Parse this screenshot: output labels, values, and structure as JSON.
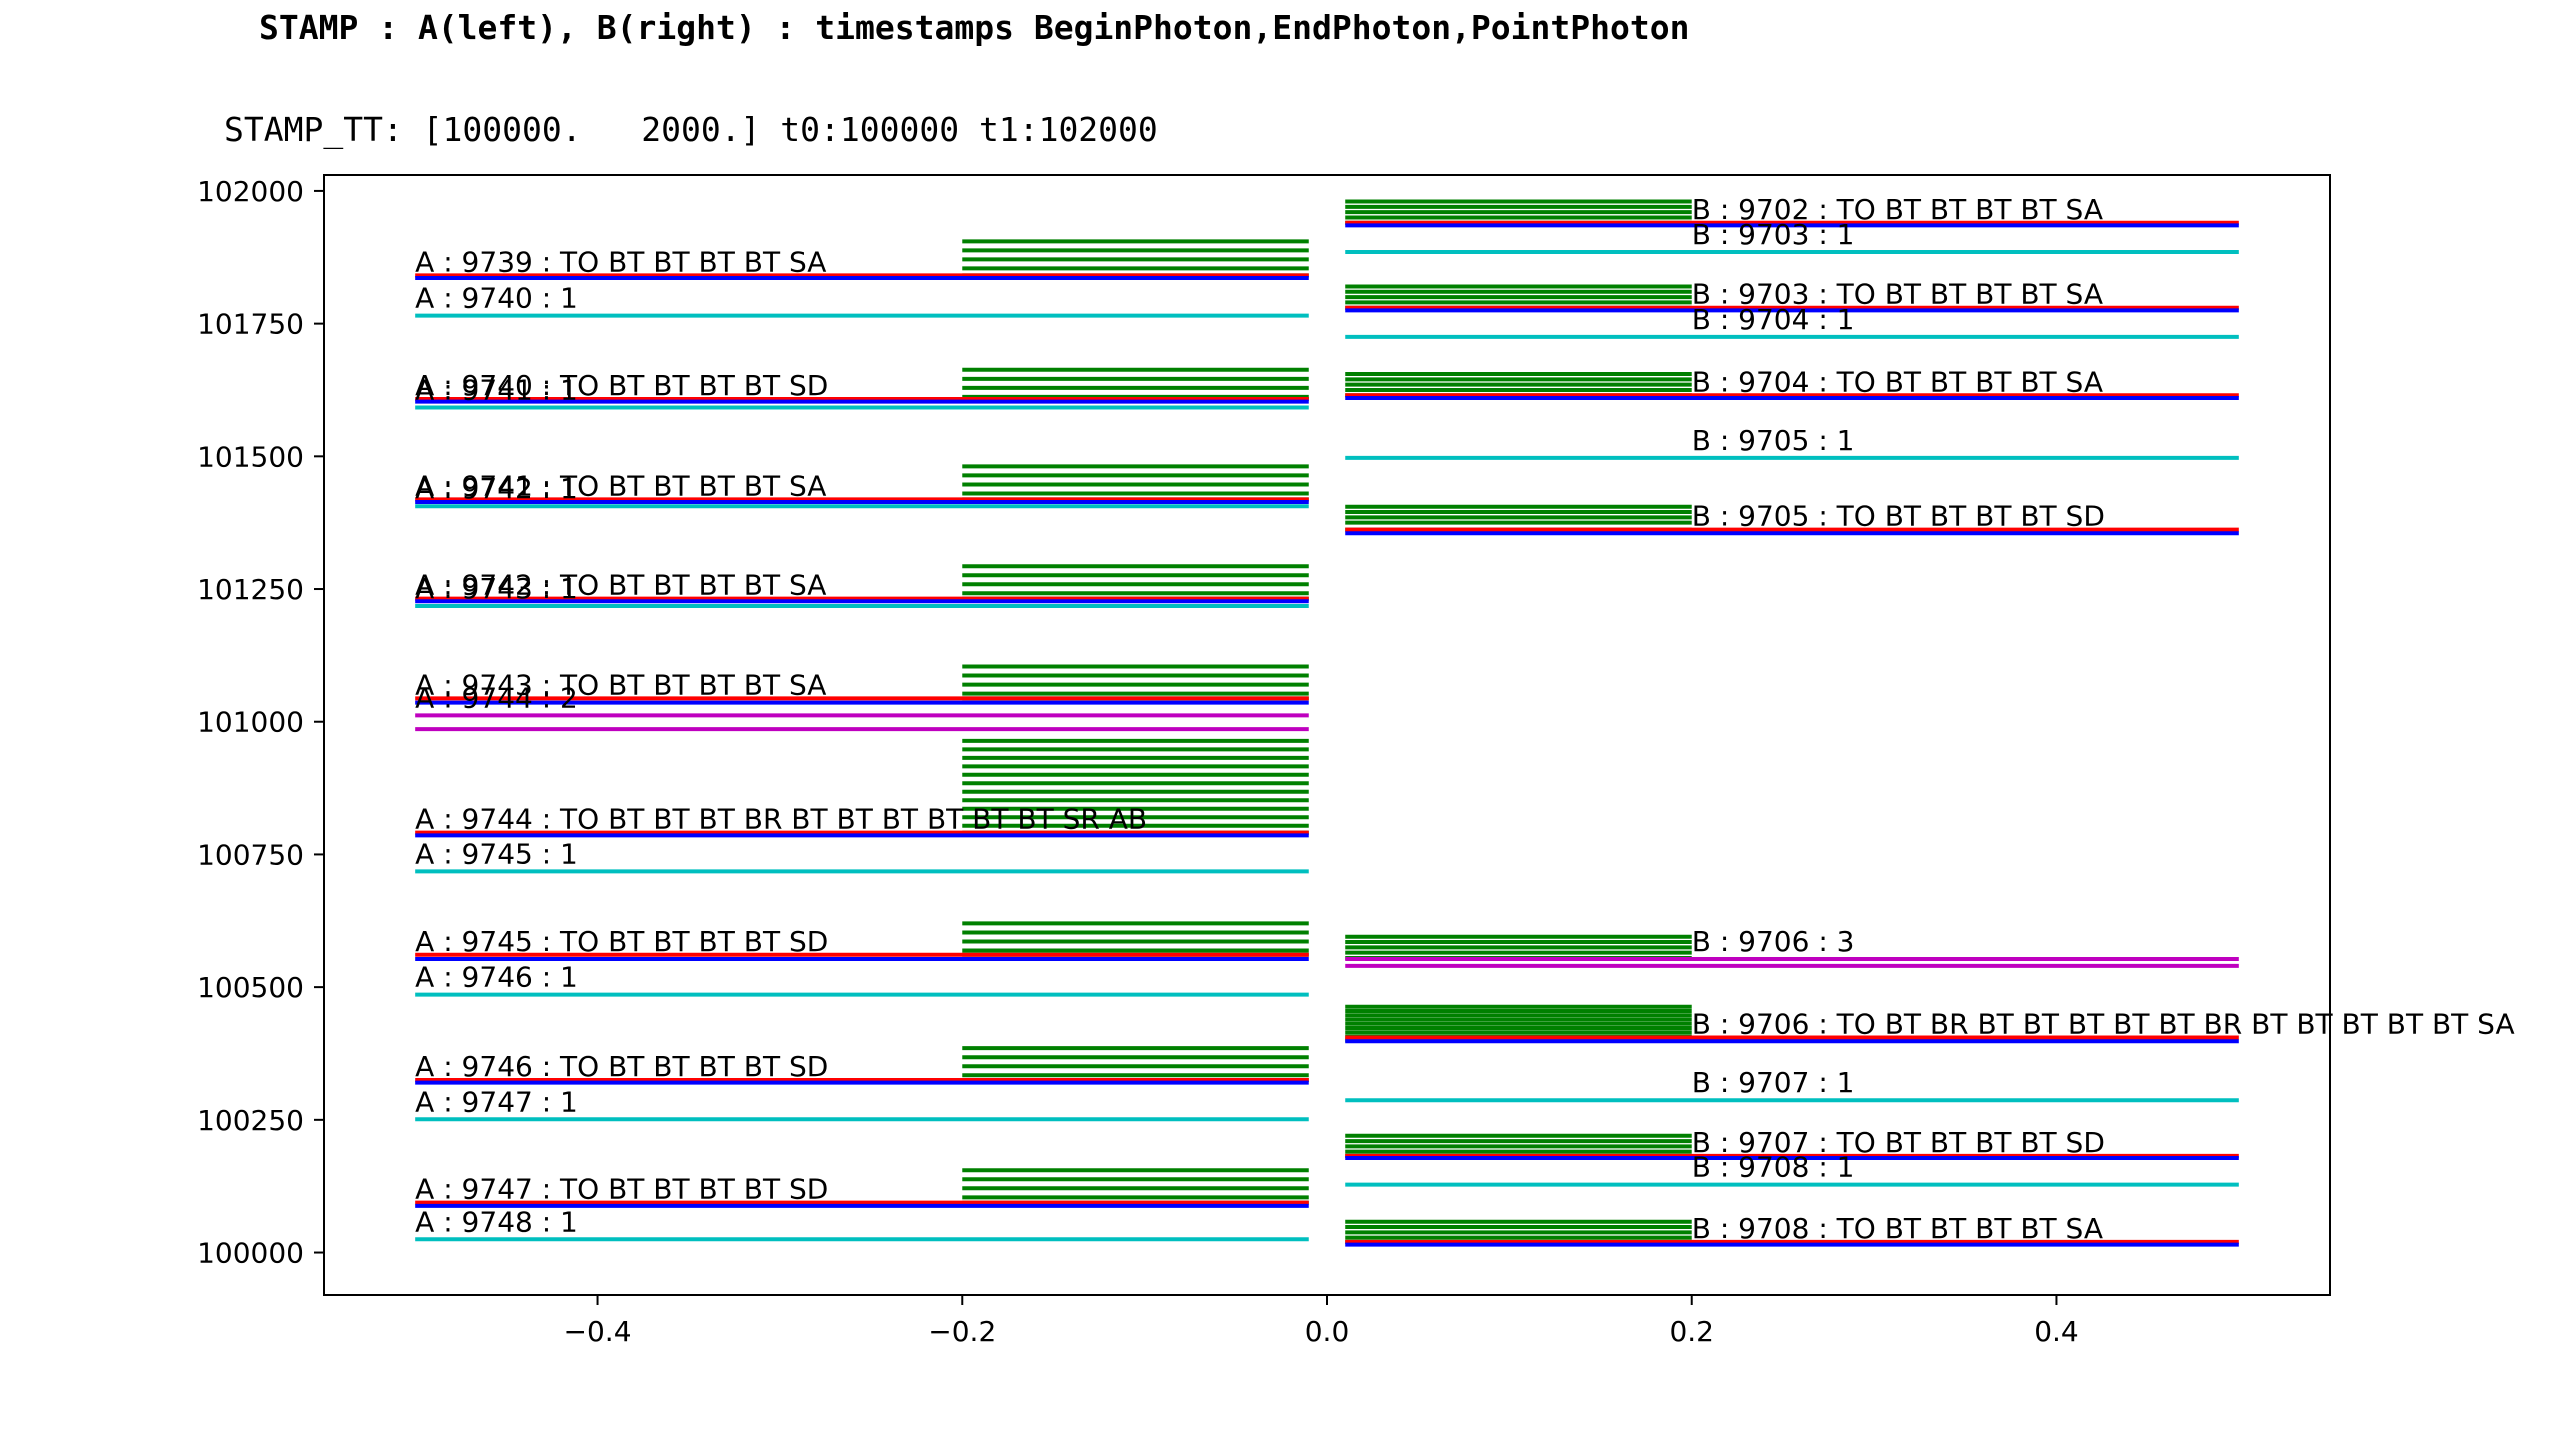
{
  "title": "STAMP : A(left), B(right) : timestamps BeginPhoton,EndPhoton,PointPhoton",
  "subtitle": "STAMP_TT: [100000.   2000.] t0:100000 t1:102000",
  "colors": {
    "begin": "#ff0000",
    "end": "#0000ff",
    "point_single": "#00bfbf",
    "point_multi": "#bf00bf",
    "steps": "#008000"
  },
  "chart_data": {
    "type": "line",
    "title": "STAMP : A(left), B(right) : timestamps BeginPhoton,EndPhoton,PointPhoton",
    "xlabel": "",
    "ylabel": "",
    "xlim": [
      -0.55,
      0.55
    ],
    "ylim": [
      99920,
      102030
    ],
    "xticks": [
      -0.4,
      -0.2,
      0.0,
      0.2,
      0.4
    ],
    "xtick_labels": [
      "−0.4",
      "−0.2",
      "0.0",
      "0.2",
      "0.4"
    ],
    "yticks": [
      100000,
      100250,
      100500,
      100750,
      101000,
      101250,
      101500,
      101750,
      102000
    ],
    "ytick_labels": [
      "100000",
      "100250",
      "100500",
      "100750",
      "101000",
      "101250",
      "101500",
      "101750",
      "102000"
    ],
    "grid": false,
    "side_A": {
      "photon_x": [
        -0.5,
        -0.01
      ],
      "step_x": [
        -0.2,
        -0.01
      ],
      "photons": [
        {
          "label": "A : 9739 : TO BT BT BT BT SA",
          "begin": 101841,
          "end": 101836,
          "steps": [
            101905,
            101888,
            101871,
            101854,
            101841
          ]
        },
        {
          "label": "A : 9740 : TO BT BT BT BT SD",
          "begin": 101608,
          "end": 101603,
          "steps": [
            101663,
            101646,
            101629,
            101612,
            101608
          ]
        },
        {
          "label": "A : 9741 : TO BT BT BT BT SA",
          "begin": 101419,
          "end": 101414,
          "steps": [
            101481,
            101464,
            101447,
            101430,
            101419
          ]
        },
        {
          "label": "A : 9742 : TO BT BT BT BT SA",
          "begin": 101232,
          "end": 101227,
          "steps": [
            101293,
            101276,
            101259,
            101242,
            101232
          ]
        },
        {
          "label": "A : 9743 : TO BT BT BT BT SA",
          "begin": 101044,
          "end": 101036,
          "steps": [
            101104,
            101087,
            101070,
            101053,
            101044
          ]
        },
        {
          "label": "A : 9744 : TO BT BT BT BR BT BT BT BT BT BT SR AB",
          "begin": 100791,
          "end": 100786,
          "steps": [
            100964,
            100948,
            100932,
            100916,
            100900,
            100884,
            100868,
            100852,
            100836,
            100820,
            100804,
            100791
          ]
        },
        {
          "label": "A : 9745 : TO BT BT BT BT SD",
          "begin": 100561,
          "end": 100553,
          "steps": [
            100620,
            100603,
            100586,
            100569,
            100561
          ]
        },
        {
          "label": "A : 9746 : TO BT BT BT BT SD",
          "begin": 100325,
          "end": 100320,
          "steps": [
            100385,
            100368,
            100351,
            100334,
            100325
          ]
        },
        {
          "label": "A : 9747 : TO BT BT BT BT SD",
          "begin": 100094,
          "end": 100088,
          "steps": [
            100155,
            100138,
            100121,
            100104,
            100094
          ]
        }
      ],
      "points": [
        {
          "label": "A : 9740 : 1",
          "value": 101765,
          "count": 1
        },
        {
          "label": "A : 9741 : 1",
          "value": 101592,
          "count": 1
        },
        {
          "label": "A : 9742 : 1",
          "value": 101406,
          "count": 1
        },
        {
          "label": "A : 9743 : 1",
          "value": 101218,
          "count": 1
        },
        {
          "label": "A : 9744 : 2",
          "value": 101012,
          "count": 2
        },
        {
          "label": "A : 9744 : 2",
          "value": 100986,
          "count": 2
        },
        {
          "label": "A : 9745 : 1",
          "value": 100718,
          "count": 1
        },
        {
          "label": "A : 9746 : 1",
          "value": 100486,
          "count": 1
        },
        {
          "label": "A : 9747 : 1",
          "value": 100251,
          "count": 1
        },
        {
          "label": "A : 9748 : 1",
          "value": 100025,
          "count": 1
        }
      ]
    },
    "side_B": {
      "photon_x": [
        0.01,
        0.5
      ],
      "step_x": [
        0.01,
        0.2
      ],
      "photons": [
        {
          "label": "B : 9702 : TO BT BT BT BT SA",
          "begin": 101940,
          "end": 101935,
          "steps": [
            101980,
            101970,
            101960,
            101950,
            101940
          ]
        },
        {
          "label": "B : 9703 : TO BT BT BT BT SA",
          "begin": 101780,
          "end": 101775,
          "steps": [
            101820,
            101810,
            101800,
            101790,
            101780
          ]
        },
        {
          "label": "B : 9704 : TO BT BT BT BT SA",
          "begin": 101615,
          "end": 101610,
          "steps": [
            101655,
            101645,
            101635,
            101625,
            101615
          ]
        },
        {
          "label": "B : 9705 : TO BT BT BT BT SD",
          "begin": 101362,
          "end": 101355,
          "steps": [
            101405,
            101395,
            101385,
            101375,
            101362
          ]
        },
        {
          "label": "B : 9706 : TO BT BR BT BT BT BT BT BR BT BT BT BT BT SA",
          "begin": 100405,
          "end": 100398,
          "steps": [
            100463,
            100455,
            100447,
            100439,
            100431,
            100423,
            100415,
            100407,
            100400
          ]
        },
        {
          "label": "B : 9707 : TO BT BT BT BT SD",
          "begin": 100182,
          "end": 100178,
          "steps": [
            100220,
            100210,
            100200,
            100190,
            100182
          ]
        },
        {
          "label": "B : 9708 : TO BT BT BT BT SA",
          "begin": 100020,
          "end": 100015,
          "steps": [
            100058,
            100048,
            100038,
            100028,
            100020
          ]
        }
      ],
      "steps_extra": [
        100595,
        100585,
        100575,
        100565,
        100555
      ],
      "points": [
        {
          "label": "B : 9703 : 1",
          "value": 101885,
          "count": 1
        },
        {
          "label": "B : 9704 : 1",
          "value": 101725,
          "count": 1
        },
        {
          "label": "B : 9705 : 1",
          "value": 101497,
          "count": 1
        },
        {
          "label": "B : 9706 : 3",
          "value": 100553,
          "count": 3
        },
        {
          "label": "B : 9706 : 3",
          "value": 100540,
          "count": 3
        },
        {
          "label": "B : 9707 : 1",
          "value": 100287,
          "count": 1
        },
        {
          "label": "B : 9708 : 1",
          "value": 100128,
          "count": 1
        }
      ]
    }
  }
}
